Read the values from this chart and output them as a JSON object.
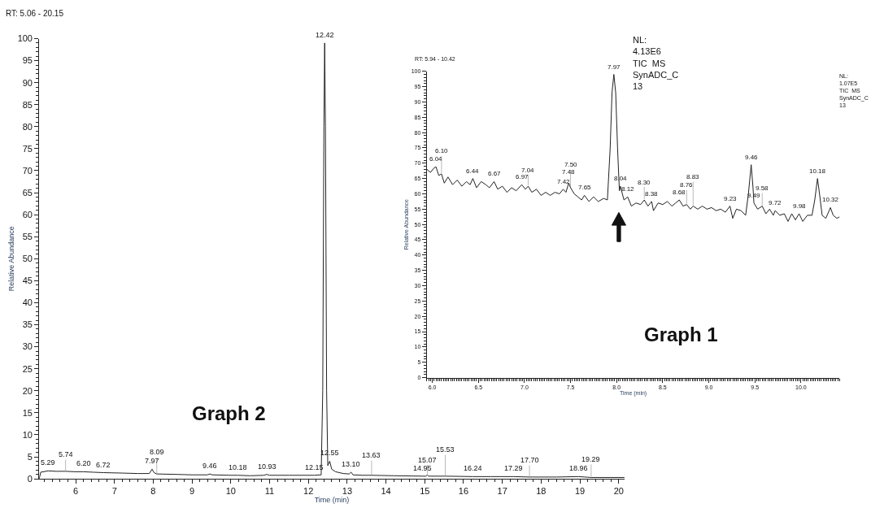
{
  "chart_data": [
    {
      "type": "line",
      "xlabel": "Time (min)",
      "ylabel": "Relative Abundance",
      "color": "#222222",
      "marker": "none",
      "x": [
        5.06,
        5.1,
        5.29,
        5.5,
        5.74,
        6.0,
        6.2,
        6.45,
        6.72,
        7.2,
        7.6,
        7.9,
        7.97,
        8.02,
        8.09,
        8.6,
        9.0,
        9.4,
        9.46,
        9.52,
        10.0,
        10.18,
        10.5,
        10.85,
        10.93,
        11.0,
        11.5,
        12.15,
        12.33,
        12.37,
        12.4,
        12.42,
        12.44,
        12.47,
        12.5,
        12.55,
        12.6,
        12.7,
        12.9,
        13.05,
        13.1,
        13.15,
        13.4,
        13.63,
        14.2,
        14.95,
        15.03,
        15.07,
        15.1,
        15.53,
        16.24,
        16.7,
        17.29,
        17.7,
        18.4,
        18.96,
        19.29,
        20.15
      ],
      "values": [
        0,
        1.5,
        1.8,
        1.7,
        1.7,
        1.6,
        1.6,
        1.5,
        1.4,
        1.3,
        1.2,
        1.2,
        2.2,
        1.4,
        1.1,
        1.0,
        0.9,
        0.9,
        1.1,
        0.9,
        0.8,
        0.8,
        0.7,
        0.8,
        1.0,
        0.8,
        0.8,
        0.8,
        0.9,
        20,
        80,
        99,
        80,
        20,
        3,
        4,
        2.2,
        1.6,
        1.2,
        1.1,
        1.5,
        0.9,
        0.8,
        0.8,
        0.7,
        0.6,
        0.6,
        0.9,
        0.6,
        0.6,
        0.5,
        0.5,
        0.5,
        0.4,
        0.4,
        0.5,
        0.3,
        0.3
      ],
      "xlim": [
        5.06,
        20.15
      ],
      "ylim": [
        0,
        100
      ],
      "xticks": [
        6,
        7,
        8,
        9,
        10,
        11,
        12,
        13,
        14,
        15,
        16,
        17,
        18,
        19,
        20
      ],
      "yticks": [
        0,
        5,
        10,
        15,
        20,
        25,
        30,
        35,
        40,
        45,
        50,
        55,
        60,
        65,
        70,
        75,
        80,
        85,
        90,
        95,
        100
      ],
      "annotations": [
        "RT: 5.06 - 20.15",
        "NL:\n4.13E6\nTIC  MS\nSynADC_C\n13",
        "Graph 2",
        {
          "text": "5.29",
          "x": 5.29,
          "y": 1.8
        },
        {
          "text": "5.74",
          "x": 5.74,
          "y": 1.7
        },
        {
          "text": "6.20",
          "x": 6.2,
          "y": 1.6
        },
        {
          "text": "6.72",
          "x": 6.72,
          "y": 1.4
        },
        {
          "text": "7.97",
          "x": 7.97,
          "y": 2.2
        },
        {
          "text": "8.09",
          "x": 8.09,
          "y": 1.1
        },
        {
          "text": "9.46",
          "x": 9.46,
          "y": 1.1
        },
        {
          "text": "10.18",
          "x": 10.18,
          "y": 0.8
        },
        {
          "text": "10.93",
          "x": 10.93,
          "y": 1.0
        },
        {
          "text": "12.15",
          "x": 12.15,
          "y": 0.8
        },
        {
          "text": "12.42",
          "x": 12.42,
          "y": 99
        },
        {
          "text": "12.55",
          "x": 12.55,
          "y": 4
        },
        {
          "text": "13.10",
          "x": 13.1,
          "y": 1.5
        },
        {
          "text": "13.63",
          "x": 13.63,
          "y": 0.8
        },
        {
          "text": "14.95",
          "x": 14.95,
          "y": 0.6
        },
        {
          "text": "15.07",
          "x": 15.07,
          "y": 0.9
        },
        {
          "text": "15.53",
          "x": 15.53,
          "y": 0.6
        },
        {
          "text": "16.24",
          "x": 16.24,
          "y": 0.5
        },
        {
          "text": "17.29",
          "x": 17.29,
          "y": 0.5
        },
        {
          "text": "17.70",
          "x": 17.7,
          "y": 0.4
        },
        {
          "text": "18.96",
          "x": 18.96,
          "y": 0.5
        },
        {
          "text": "19.29",
          "x": 19.29,
          "y": 0.3
        }
      ]
    },
    {
      "type": "line",
      "xlabel": "Time (min)",
      "ylabel": "Relative Abundance",
      "color": "#222222",
      "marker": "none",
      "x": [
        5.94,
        5.98,
        6.02,
        6.04,
        6.07,
        6.1,
        6.13,
        6.17,
        6.22,
        6.27,
        6.32,
        6.37,
        6.41,
        6.44,
        6.48,
        6.53,
        6.58,
        6.62,
        6.67,
        6.71,
        6.76,
        6.81,
        6.86,
        6.91,
        6.97,
        7.01,
        7.04,
        7.08,
        7.13,
        7.18,
        7.23,
        7.28,
        7.33,
        7.38,
        7.42,
        7.45,
        7.48,
        7.5,
        7.54,
        7.58,
        7.62,
        7.65,
        7.7,
        7.75,
        7.8,
        7.86,
        7.9,
        7.93,
        7.95,
        7.97,
        7.99,
        8.01,
        8.03,
        8.04,
        8.08,
        8.12,
        8.16,
        8.21,
        8.26,
        8.3,
        8.34,
        8.38,
        8.4,
        8.45,
        8.5,
        8.55,
        8.6,
        8.64,
        8.68,
        8.72,
        8.76,
        8.8,
        8.83,
        8.88,
        8.93,
        8.98,
        9.03,
        9.08,
        9.13,
        9.18,
        9.23,
        9.26,
        9.3,
        9.35,
        9.4,
        9.43,
        9.46,
        9.48,
        9.49,
        9.53,
        9.58,
        9.62,
        9.66,
        9.7,
        9.72,
        9.77,
        9.82,
        9.86,
        9.9,
        9.94,
        9.98,
        10.02,
        10.07,
        10.12,
        10.15,
        10.18,
        10.21,
        10.23,
        10.27,
        10.32,
        10.35,
        10.39,
        10.42
      ],
      "values": [
        68,
        67,
        68.5,
        68.8,
        66,
        66.5,
        63.5,
        65.5,
        63,
        64.5,
        62.5,
        64,
        63,
        65,
        62,
        64,
        63,
        62,
        64,
        61.5,
        62.5,
        60.5,
        62,
        61,
        63,
        61.5,
        62.5,
        60.5,
        61.5,
        59.5,
        60.5,
        59.5,
        60.5,
        60,
        61.5,
        60.5,
        63.5,
        62,
        60,
        59,
        58,
        59.5,
        57.5,
        59,
        57.5,
        58.5,
        58,
        75,
        93,
        99,
        93,
        75,
        61,
        62.5,
        58,
        59,
        56,
        57,
        56.5,
        58,
        56,
        57.5,
        54.5,
        57,
        56.5,
        57.5,
        56,
        57,
        58,
        56,
        56.5,
        55,
        56,
        55,
        56,
        55,
        55.5,
        54.5,
        55,
        54,
        56,
        52,
        55,
        54.5,
        53,
        60,
        69.5,
        62,
        57,
        55,
        56,
        53.5,
        55,
        53,
        54.5,
        53,
        53.5,
        51,
        53.5,
        51.5,
        53.5,
        51,
        53,
        53,
        58,
        65,
        58,
        53,
        52,
        55.5,
        53,
        52,
        52.5
      ],
      "xlim": [
        5.94,
        10.42
      ],
      "ylim": [
        0,
        100
      ],
      "xticks": [
        {
          "value": 6,
          "label": "6.0"
        },
        {
          "value": 6.5,
          "label": "6.5"
        },
        {
          "value": 7,
          "label": "7.0"
        },
        {
          "value": 7.5,
          "label": "7.5"
        },
        {
          "value": 8,
          "label": "8.0"
        },
        {
          "value": 8.5,
          "label": "8.5"
        },
        {
          "value": 9,
          "label": "9.0"
        },
        {
          "value": 9.5,
          "label": "9.5"
        },
        {
          "value": 10,
          "label": "10.0"
        }
      ],
      "yticks": [
        0,
        5,
        10,
        15,
        20,
        25,
        30,
        35,
        40,
        45,
        50,
        55,
        60,
        65,
        70,
        75,
        80,
        85,
        90,
        95,
        100
      ],
      "annotations": [
        "RT: 5.94 - 10.42",
        "NL:\n1.07E5\nTIC  MS\nSynADC_C\n13",
        "Graph 1",
        {
          "text": "6.04",
          "x": 6.04,
          "y": 68.8
        },
        {
          "text": "6.10",
          "x": 6.1,
          "y": 66.5
        },
        {
          "text": "6.44",
          "x": 6.44,
          "y": 65
        },
        {
          "text": "6.67",
          "x": 6.67,
          "y": 64
        },
        {
          "text": "6.97",
          "x": 6.97,
          "y": 63
        },
        {
          "text": "7.04",
          "x": 7.04,
          "y": 62.5
        },
        {
          "text": "7.42",
          "x": 7.42,
          "y": 61.5
        },
        {
          "text": "7.48",
          "x": 7.48,
          "y": 63.5
        },
        {
          "text": "7.50",
          "x": 7.5,
          "y": 62
        },
        {
          "text": "7.65",
          "x": 7.65,
          "y": 59.5
        },
        {
          "text": "7.97",
          "x": 7.97,
          "y": 99
        },
        {
          "text": "8.04",
          "x": 8.04,
          "y": 62.5
        },
        {
          "text": "8.12",
          "x": 8.12,
          "y": 59
        },
        {
          "text": "8.30",
          "x": 8.3,
          "y": 58
        },
        {
          "text": "8.38",
          "x": 8.38,
          "y": 57.5
        },
        {
          "text": "8.68",
          "x": 8.68,
          "y": 58
        },
        {
          "text": "8.76",
          "x": 8.76,
          "y": 56.5
        },
        {
          "text": "8.83",
          "x": 8.83,
          "y": 56
        },
        {
          "text": "9.23",
          "x": 9.23,
          "y": 56
        },
        {
          "text": "9.46",
          "x": 9.46,
          "y": 69.5
        },
        {
          "text": "9.49",
          "x": 9.49,
          "y": 57
        },
        {
          "text": "9.58",
          "x": 9.58,
          "y": 56
        },
        {
          "text": "9.72",
          "x": 9.72,
          "y": 54.5
        },
        {
          "text": "9.98",
          "x": 9.98,
          "y": 53.5
        },
        {
          "text": "10.18",
          "x": 10.18,
          "y": 65
        },
        {
          "text": "10.32",
          "x": 10.32,
          "y": 55.5
        }
      ]
    }
  ]
}
